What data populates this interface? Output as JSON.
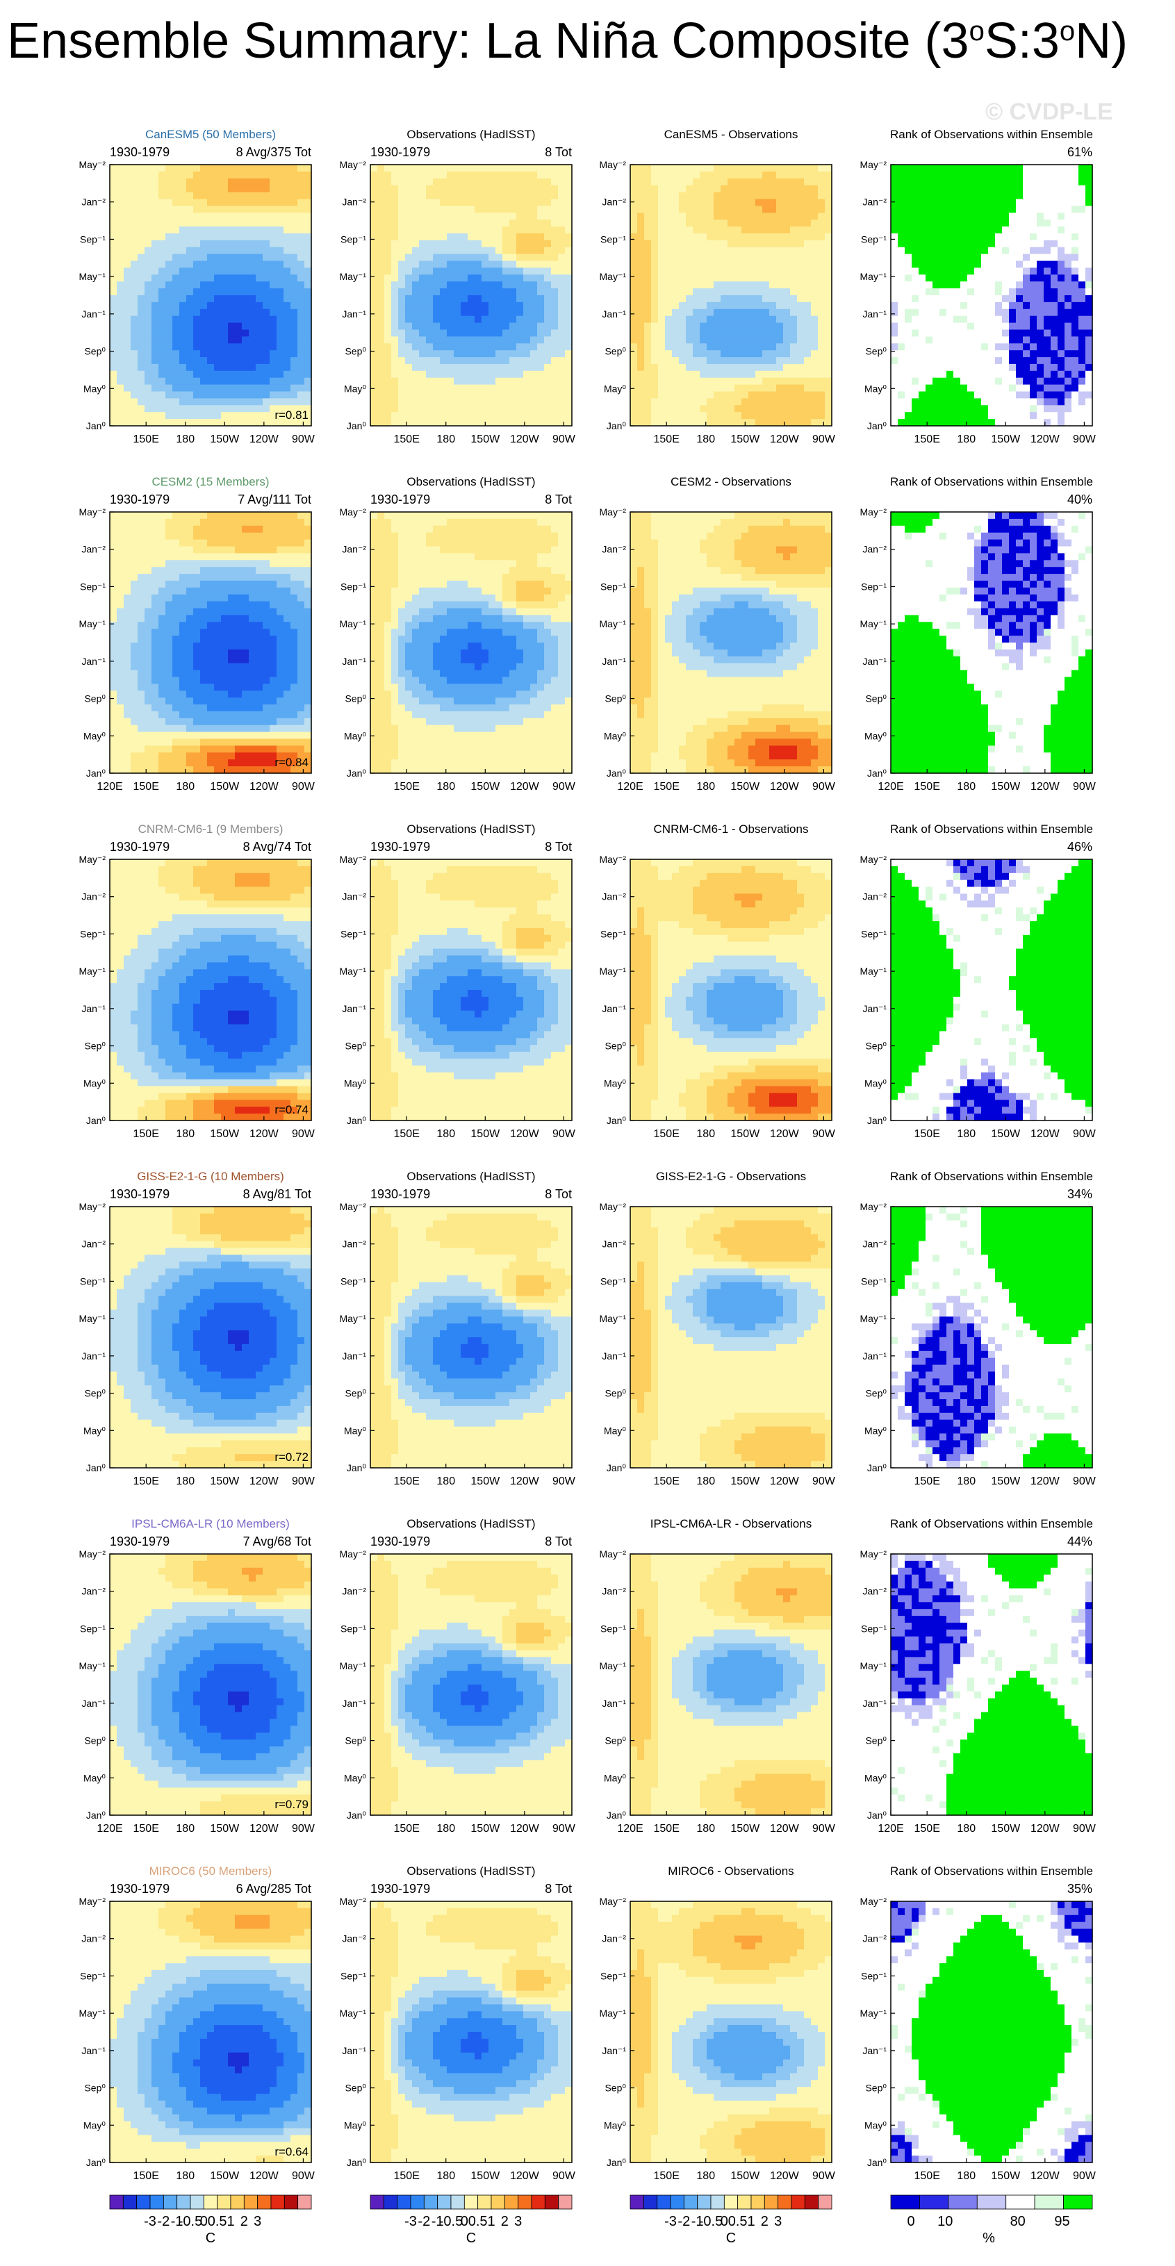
{
  "page": {
    "title_text": "Ensemble Summary: La Niña Composite (3",
    "title_sup1": "o",
    "title_mid": "S:3",
    "title_sup2": "o",
    "title_end": "N)",
    "watermark": "© CVDP-LE"
  },
  "colors": {
    "sst_levels": [
      "#5b1fbf",
      "#1a2fd6",
      "#1f5ff0",
      "#2e86f4",
      "#5aa9f3",
      "#8dc6f2",
      "#bedff0",
      "#fdf7b2",
      "#fde98a",
      "#fccf5e",
      "#fba53a",
      "#f46e1e",
      "#e42a12",
      "#b50d0d",
      "#f4a0a0"
    ],
    "rank_levels": [
      "#0000d8",
      "#2a2ae6",
      "#7e7ef0",
      "#c8c8f6",
      "#ffffff",
      "#d9f9dc",
      "#00ee00"
    ]
  },
  "chart_data": [
    {
      "type": "heatmap",
      "row": "CanESM5",
      "panel": "model",
      "label": "CanESM5 (50 Members)",
      "label_color": "#2a6fa8",
      "left": "1930-1979",
      "right": "8 Avg/375 Tot",
      "corner": "r=0.81",
      "y_ticks": [
        "May⁻²",
        "Jan⁻²",
        "Sep⁻¹",
        "May⁻¹",
        "Jan⁻¹",
        "Sep⁰",
        "May⁰",
        "Jan⁰"
      ],
      "x_ticks": [
        "150E",
        "180",
        "150W",
        "120W",
        "90W"
      ]
    },
    {
      "type": "heatmap",
      "row": "CanESM5",
      "panel": "obs",
      "label": "Observations (HadISST)",
      "left": "1930-1979",
      "right": "8 Tot",
      "y_ticks": [
        "May⁻²",
        "Jan⁻²",
        "Sep⁻¹",
        "May⁻¹",
        "Jan⁻¹",
        "Sep⁰",
        "May⁰",
        "Jan⁰"
      ],
      "x_ticks": [
        "150E",
        "180",
        "150W",
        "120W",
        "90W"
      ]
    },
    {
      "type": "heatmap",
      "row": "CanESM5",
      "panel": "diff",
      "label": "CanESM5 - Observations",
      "y_ticks": [
        "May⁻²",
        "Jan⁻²",
        "Sep⁻¹",
        "May⁻¹",
        "Jan⁻¹",
        "Sep⁰",
        "May⁰",
        "Jan⁰"
      ],
      "x_ticks": [
        "150E",
        "180",
        "150W",
        "120W",
        "90W"
      ]
    },
    {
      "type": "heatmap",
      "row": "CanESM5",
      "panel": "rank",
      "label": "Rank of Observations within Ensemble",
      "right": "61%",
      "y_ticks": [
        "May⁻²",
        "Jan⁻²",
        "Sep⁻¹",
        "May⁻¹",
        "Jan⁻¹",
        "Sep⁰",
        "May⁰",
        "Jan⁰"
      ],
      "x_ticks": [
        "150E",
        "180",
        "150W",
        "120W",
        "90W"
      ]
    },
    {
      "type": "heatmap",
      "row": "CESM2",
      "panel": "model",
      "label": "CESM2 (15 Members)",
      "label_color": "#5e9a6a",
      "left": "1930-1979",
      "right": "7 Avg/111 Tot",
      "corner": "r=0.84",
      "y_ticks": [
        "May⁻²",
        "Jan⁻²",
        "Sep⁻¹",
        "May⁻¹",
        "Jan⁻¹",
        "Sep⁰",
        "May⁰",
        "Jan⁰"
      ],
      "x_ticks": [
        "120E",
        "150E",
        "180",
        "150W",
        "120W",
        "90W"
      ]
    },
    {
      "type": "heatmap",
      "row": "CESM2",
      "panel": "obs",
      "label": "Observations (HadISST)",
      "left": "1930-1979",
      "right": "8 Tot",
      "y_ticks": [
        "May⁻²",
        "Jan⁻²",
        "Sep⁻¹",
        "May⁻¹",
        "Jan⁻¹",
        "Sep⁰",
        "May⁰",
        "Jan⁰"
      ],
      "x_ticks": [
        "150E",
        "180",
        "150W",
        "120W",
        "90W"
      ]
    },
    {
      "type": "heatmap",
      "row": "CESM2",
      "panel": "diff",
      "label": "CESM2 - Observations",
      "y_ticks": [
        "May⁻²",
        "Jan⁻²",
        "Sep⁻¹",
        "May⁻¹",
        "Jan⁻¹",
        "Sep⁰",
        "May⁰",
        "Jan⁰"
      ],
      "x_ticks": [
        "120E",
        "150E",
        "180",
        "150W",
        "120W",
        "90W"
      ]
    },
    {
      "type": "heatmap",
      "row": "CESM2",
      "panel": "rank",
      "label": "Rank of Observations within Ensemble",
      "right": "40%",
      "y_ticks": [
        "May⁻²",
        "Jan⁻²",
        "Sep⁻¹",
        "May⁻¹",
        "Jan⁻¹",
        "Sep⁰",
        "May⁰",
        "Jan⁰"
      ],
      "x_ticks": [
        "120E",
        "150E",
        "180",
        "150W",
        "120W",
        "90W"
      ]
    },
    {
      "type": "heatmap",
      "row": "CNRM-CM6-1",
      "panel": "model",
      "label": "CNRM-CM6-1 (9 Members)",
      "label_color": "#8a8a8a",
      "left": "1930-1979",
      "right": "8 Avg/74 Tot",
      "corner": "r=0.74",
      "y_ticks": [
        "May⁻²",
        "Jan⁻²",
        "Sep⁻¹",
        "May⁻¹",
        "Jan⁻¹",
        "Sep⁰",
        "May⁰",
        "Jan⁰"
      ],
      "x_ticks": [
        "150E",
        "180",
        "150W",
        "120W",
        "90W"
      ]
    },
    {
      "type": "heatmap",
      "row": "CNRM-CM6-1",
      "panel": "obs",
      "label": "Observations (HadISST)",
      "left": "1930-1979",
      "right": "8 Tot",
      "y_ticks": [
        "May⁻²",
        "Jan⁻²",
        "Sep⁻¹",
        "May⁻¹",
        "Jan⁻¹",
        "Sep⁰",
        "May⁰",
        "Jan⁰"
      ],
      "x_ticks": [
        "150E",
        "180",
        "150W",
        "120W",
        "90W"
      ]
    },
    {
      "type": "heatmap",
      "row": "CNRM-CM6-1",
      "panel": "diff",
      "label": "CNRM-CM6-1 - Observations",
      "y_ticks": [
        "May⁻²",
        "Jan⁻²",
        "Sep⁻¹",
        "May⁻¹",
        "Jan⁻¹",
        "Sep⁰",
        "May⁰",
        "Jan⁰"
      ],
      "x_ticks": [
        "150E",
        "180",
        "150W",
        "120W",
        "90W"
      ]
    },
    {
      "type": "heatmap",
      "row": "CNRM-CM6-1",
      "panel": "rank",
      "label": "Rank of Observations within Ensemble",
      "right": "46%",
      "y_ticks": [
        "May⁻²",
        "Jan⁻²",
        "Sep⁻¹",
        "May⁻¹",
        "Jan⁻¹",
        "Sep⁰",
        "May⁰",
        "Jan⁰"
      ],
      "x_ticks": [
        "150E",
        "180",
        "150W",
        "120W",
        "90W"
      ]
    },
    {
      "type": "heatmap",
      "row": "GISS-E2-1-G",
      "panel": "model",
      "label": "GISS-E2-1-G (10 Members)",
      "label_color": "#a0522d",
      "left": "1930-1979",
      "right": "8 Avg/81 Tot",
      "corner": "r=0.72",
      "y_ticks": [
        "May⁻²",
        "Jan⁻²",
        "Sep⁻¹",
        "May⁻¹",
        "Jan⁻¹",
        "Sep⁰",
        "May⁰",
        "Jan⁰"
      ],
      "x_ticks": [
        "150E",
        "180",
        "150W",
        "120W",
        "90W"
      ]
    },
    {
      "type": "heatmap",
      "row": "GISS-E2-1-G",
      "panel": "obs",
      "label": "Observations (HadISST)",
      "left": "1930-1979",
      "right": "8 Tot",
      "y_ticks": [
        "May⁻²",
        "Jan⁻²",
        "Sep⁻¹",
        "May⁻¹",
        "Jan⁻¹",
        "Sep⁰",
        "May⁰",
        "Jan⁰"
      ],
      "x_ticks": [
        "150E",
        "180",
        "150W",
        "120W",
        "90W"
      ]
    },
    {
      "type": "heatmap",
      "row": "GISS-E2-1-G",
      "panel": "diff",
      "label": "GISS-E2-1-G - Observations",
      "y_ticks": [
        "May⁻²",
        "Jan⁻²",
        "Sep⁻¹",
        "May⁻¹",
        "Jan⁻¹",
        "Sep⁰",
        "May⁰",
        "Jan⁰"
      ],
      "x_ticks": [
        "150E",
        "180",
        "150W",
        "120W",
        "90W"
      ]
    },
    {
      "type": "heatmap",
      "row": "GISS-E2-1-G",
      "panel": "rank",
      "label": "Rank of Observations within Ensemble",
      "right": "34%",
      "y_ticks": [
        "May⁻²",
        "Jan⁻²",
        "Sep⁻¹",
        "May⁻¹",
        "Jan⁻¹",
        "Sep⁰",
        "May⁰",
        "Jan⁰"
      ],
      "x_ticks": [
        "150E",
        "180",
        "150W",
        "120W",
        "90W"
      ]
    },
    {
      "type": "heatmap",
      "row": "IPSL-CM6A-LR",
      "panel": "model",
      "label": "IPSL-CM6A-LR (10 Members)",
      "label_color": "#7b68c8",
      "left": "1930-1979",
      "right": "7 Avg/68 Tot",
      "corner": "r=0.79",
      "y_ticks": [
        "May⁻²",
        "Jan⁻²",
        "Sep⁻¹",
        "May⁻¹",
        "Jan⁻¹",
        "Sep⁰",
        "May⁰",
        "Jan⁰"
      ],
      "x_ticks": [
        "120E",
        "150E",
        "180",
        "150W",
        "120W",
        "90W"
      ]
    },
    {
      "type": "heatmap",
      "row": "IPSL-CM6A-LR",
      "panel": "obs",
      "label": "Observations (HadISST)",
      "left": "1930-1979",
      "right": "8 Tot",
      "y_ticks": [
        "May⁻²",
        "Jan⁻²",
        "Sep⁻¹",
        "May⁻¹",
        "Jan⁻¹",
        "Sep⁰",
        "May⁰",
        "Jan⁰"
      ],
      "x_ticks": [
        "150E",
        "180",
        "150W",
        "120W",
        "90W"
      ]
    },
    {
      "type": "heatmap",
      "row": "IPSL-CM6A-LR",
      "panel": "diff",
      "label": "IPSL-CM6A-LR - Observations",
      "y_ticks": [
        "May⁻²",
        "Jan⁻²",
        "Sep⁻¹",
        "May⁻¹",
        "Jan⁻¹",
        "Sep⁰",
        "May⁰",
        "Jan⁰"
      ],
      "x_ticks": [
        "120E",
        "150E",
        "180",
        "150W",
        "120W",
        "90W"
      ]
    },
    {
      "type": "heatmap",
      "row": "IPSL-CM6A-LR",
      "panel": "rank",
      "label": "Rank of Observations within Ensemble",
      "right": "44%",
      "y_ticks": [
        "May⁻²",
        "Jan⁻²",
        "Sep⁻¹",
        "May⁻¹",
        "Jan⁻¹",
        "Sep⁰",
        "May⁰",
        "Jan⁰"
      ],
      "x_ticks": [
        "120E",
        "150E",
        "180",
        "150W",
        "120W",
        "90W"
      ]
    },
    {
      "type": "heatmap",
      "row": "MIROC6",
      "panel": "model",
      "label": "MIROC6 (50 Members)",
      "label_color": "#d9a27a",
      "left": "1930-1979",
      "right": "6 Avg/285 Tot",
      "corner": "r=0.64",
      "y_ticks": [
        "May⁻²",
        "Jan⁻²",
        "Sep⁻¹",
        "May⁻¹",
        "Jan⁻¹",
        "Sep⁰",
        "May⁰",
        "Jan⁰"
      ],
      "x_ticks": [
        "150E",
        "180",
        "150W",
        "120W",
        "90W"
      ]
    },
    {
      "type": "heatmap",
      "row": "MIROC6",
      "panel": "obs",
      "label": "Observations (HadISST)",
      "left": "1930-1979",
      "right": "8 Tot",
      "y_ticks": [
        "May⁻²",
        "Jan⁻²",
        "Sep⁻¹",
        "May⁻¹",
        "Jan⁻¹",
        "Sep⁰",
        "May⁰",
        "Jan⁰"
      ],
      "x_ticks": [
        "150E",
        "180",
        "150W",
        "120W",
        "90W"
      ]
    },
    {
      "type": "heatmap",
      "row": "MIROC6",
      "panel": "diff",
      "label": "MIROC6 - Observations",
      "y_ticks": [
        "May⁻²",
        "Jan⁻²",
        "Sep⁻¹",
        "May⁻¹",
        "Jan⁻¹",
        "Sep⁰",
        "May⁰",
        "Jan⁰"
      ],
      "x_ticks": [
        "150E",
        "180",
        "150W",
        "120W",
        "90W"
      ]
    },
    {
      "type": "heatmap",
      "row": "MIROC6",
      "panel": "rank",
      "label": "Rank of Observations within Ensemble",
      "right": "35%",
      "y_ticks": [
        "May⁻²",
        "Jan⁻²",
        "Sep⁻¹",
        "May⁻¹",
        "Jan⁻¹",
        "Sep⁰",
        "May⁰",
        "Jan⁰"
      ],
      "x_ticks": [
        "150E",
        "180",
        "150W",
        "120W",
        "90W"
      ]
    }
  ],
  "colorbars": [
    {
      "ticks": [
        "-3",
        "-2",
        "-1",
        "-0.5",
        "0",
        "0.5",
        "1",
        "2",
        "3"
      ],
      "unit": "C",
      "palette": "sst"
    },
    {
      "ticks": [
        "-3",
        "-2",
        "-1",
        "-0.5",
        "0",
        "0.5",
        "1",
        "2",
        "3"
      ],
      "unit": "C",
      "palette": "sst"
    },
    {
      "ticks": [
        "-3",
        "-2",
        "-1",
        "-0.5",
        "0",
        "0.5",
        "1",
        "2",
        "3"
      ],
      "unit": "C",
      "palette": "sst"
    },
    {
      "ticks": [
        "0",
        "10",
        "80",
        "95"
      ],
      "unit": "%",
      "palette": "rank"
    }
  ]
}
